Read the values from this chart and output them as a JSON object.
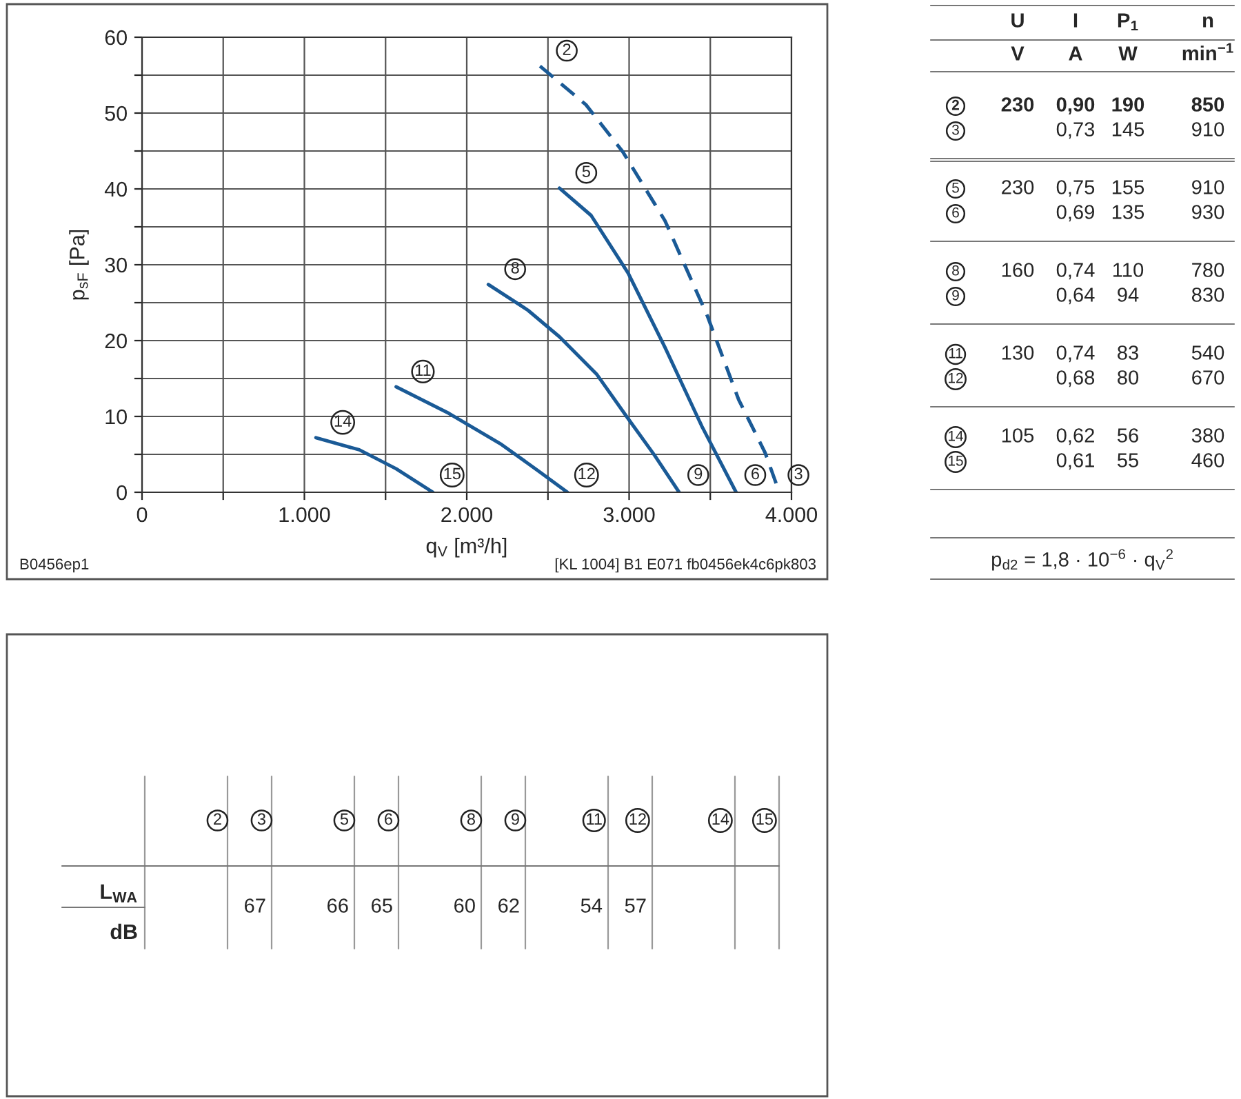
{
  "chart_data": [
    {
      "type": "line",
      "xlabel": "q$_{V}$ [m³/h]",
      "ylabel": "p$_{sF}$ [Pa]",
      "xlim": [
        0,
        4000
      ],
      "ylim": [
        0,
        60
      ],
      "xticks": [
        0,
        {
          "value": 500,
          "label": null
        },
        {
          "value": 1000,
          "label": "1.000"
        },
        {
          "value": 1500,
          "label": null
        },
        {
          "value": 2000,
          "label": "2.000"
        },
        {
          "value": 2500,
          "label": null
        },
        {
          "value": 3000,
          "label": "3.000"
        },
        {
          "value": 3500,
          "label": null
        },
        {
          "value": 4000,
          "label": "4.000"
        }
      ],
      "yticks": [
        0,
        {
          "value": 5,
          "label": null
        },
        10,
        {
          "value": 15,
          "label": null
        },
        20,
        {
          "value": 25,
          "label": null
        },
        30,
        {
          "value": 35,
          "label": null
        },
        40,
        {
          "value": 45,
          "label": null
        },
        50,
        {
          "value": 55,
          "label": null
        },
        60
      ],
      "grid": true,
      "series": [
        {
          "color": "#1a5a96",
          "line_style": "dashed",
          "x": [
            2451,
            2734,
            2961,
            3221,
            3481,
            3675,
            3838,
            3925
          ],
          "values": [
            56.2,
            51.1,
            44.9,
            35.8,
            23.3,
            12.2,
            5.2,
            0
          ]
        },
        {
          "color": "#1a5a96",
          "line_style": "solid",
          "x": [
            2571,
            2766,
            2994,
            3221,
            3448,
            3659
          ],
          "values": [
            40.1,
            36.5,
            28.9,
            19.1,
            8.7,
            0
          ]
        },
        {
          "color": "#1a5a96",
          "line_style": "solid",
          "x": [
            2133,
            2377,
            2571,
            2799,
            2994,
            3156,
            3308
          ],
          "values": [
            27.4,
            24.0,
            20.5,
            15.6,
            9.7,
            4.9,
            0
          ]
        },
        {
          "color": "#1a5a96",
          "line_style": "solid",
          "x": [
            1565,
            1890,
            2214,
            2442,
            2620
          ],
          "values": [
            13.9,
            10.4,
            6.3,
            2.8,
            0
          ]
        },
        {
          "color": "#1a5a96",
          "line_style": "solid",
          "x": [
            1071,
            1338,
            1565,
            1792
          ],
          "values": [
            7.2,
            5.6,
            3.1,
            0
          ]
        }
      ],
      "annotations": [
        {
          "text": "2",
          "x": 2451,
          "y": 56.2
        },
        {
          "text": "5",
          "x": 2571,
          "y": 40.1
        },
        {
          "text": "8",
          "x": 2133,
          "y": 27.4
        },
        {
          "text": "11",
          "x": 1565,
          "y": 13.9
        },
        {
          "text": "14",
          "x": 1071,
          "y": 7.2
        },
        {
          "text": "15",
          "x": 1792,
          "y": 0
        },
        {
          "text": "12",
          "x": 2620,
          "y": 0
        },
        {
          "text": "9",
          "x": 3308,
          "y": 0
        },
        {
          "text": "6",
          "x": 3659,
          "y": 0
        },
        {
          "text": "3",
          "x": 3925,
          "y": 0
        },
        "B0456ep1",
        "[KL 1004] B1 E071 fb0456ek4c6pk803"
      ]
    },
    {
      "type": "other",
      "annotations": [
        "\tU\tI\tP$_{1}$\tn",
        "\tV\tA\tW\tmin$^{−1}$",
        "2\t230\t0,90\t190\t850",
        "3\t\t0,73\t145\t910",
        "5\t230\t0,75\t155\t910",
        "6\t\t0,69\t135\t930",
        "8\t160\t0,74\t110\t780",
        "9\t\t0,64\t94\t830",
        "11\t130\t0,74\t83\t540",
        "12\t\t0,68\t80\t670",
        "14\t105\t0,62\t56\t380",
        "15\t\t0,61\t55\t460",
        "p$_{d2}$ = 1,8 · 10$^{−6}$ · q$_{V}$$^{2}$"
      ]
    },
    {
      "type": "other",
      "annotations": [
        "\t2\t3\t5\t6\t8\t9\t11\t12\t14\t15",
        "L$_{WA}$\t\t67\t66\t65\t60\t62\t54\t57\t\t",
        "dB"
      ]
    }
  ]
}
